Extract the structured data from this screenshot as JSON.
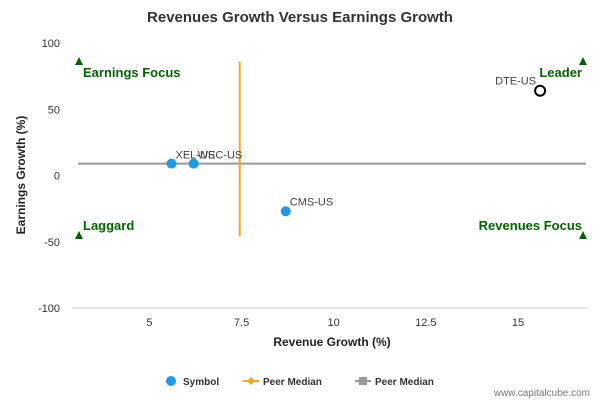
{
  "chart_data": {
    "type": "scatter",
    "title": "Revenues Growth Versus Earnings Growth",
    "xlabel": "Revenue Growth (%)",
    "ylabel": "Earnings Growth (%)",
    "xlim": [
      2.9,
      16.9
    ],
    "ylim": [
      -100,
      100
    ],
    "xticks": [
      5,
      7.5,
      10,
      12.5,
      15
    ],
    "xtick_labels": [
      "5",
      "7.5",
      "10",
      "12.5",
      "15"
    ],
    "yticks": [
      100,
      50,
      0,
      -50,
      -100
    ],
    "ytick_labels": [
      "100",
      "50",
      "0",
      "-50",
      "-100"
    ],
    "grid": false,
    "points": [
      {
        "label": "XEL-US",
        "x": 5.6,
        "y": 9,
        "style": "filled"
      },
      {
        "label": "WEC-US",
        "x": 6.2,
        "y": 9,
        "style": "filled"
      },
      {
        "label": "CMS-US",
        "x": 8.7,
        "y": -27,
        "style": "filled"
      },
      {
        "label": "DTE-US",
        "x": 15.6,
        "y": 64,
        "style": "hollow"
      }
    ],
    "peer_median_x": {
      "x": 7.45,
      "y_from": -46,
      "y_to": 86
    },
    "peer_median_y": {
      "y": 9
    },
    "quadrants": {
      "top_left": "Earnings Focus",
      "top_right": "Leader",
      "bottom_left": "Laggard",
      "bottom_right": "Revenues Focus"
    },
    "legend": {
      "placement": "bottom-center",
      "items": [
        {
          "name": "Symbol",
          "marker": "circle",
          "color": "#1f9be5"
        },
        {
          "name": "Peer Median",
          "marker": "diamond",
          "color": "#f5a623"
        },
        {
          "name": "Peer Median",
          "marker": "square",
          "color": "#999999"
        }
      ]
    },
    "colors": {
      "point": "#1f9be5",
      "hollow_point": "#000000",
      "median_x": "#f5a623",
      "median_y": "#999999",
      "quadrant_text": "#006400",
      "triangle": "#006400"
    }
  },
  "credit": "www.capitalcube.com"
}
